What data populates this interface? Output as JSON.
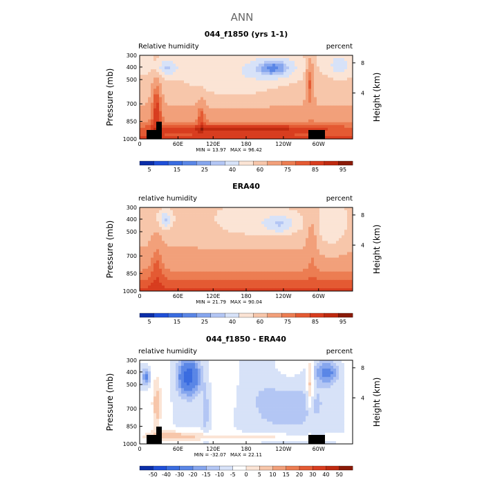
{
  "main_title": "ANN",
  "colors": {
    "rh_palette": [
      "#0b2ea8",
      "#1f4fd8",
      "#3a6ce0",
      "#5a86e6",
      "#86a6ee",
      "#b3c6f4",
      "#d7e2f8",
      "#fbe4d5",
      "#f7c6aa",
      "#f2a07a",
      "#ec7d52",
      "#e45a33",
      "#d83d1f",
      "#bf2a10",
      "#8a1a08"
    ],
    "diff_palette": [
      "#0b2ea8",
      "#1f4fd8",
      "#3a6ce0",
      "#5a86e6",
      "#86a6ee",
      "#b3c6f4",
      "#d7e2f8",
      "#ffffff",
      "#fbe4d5",
      "#f7c6aa",
      "#f2a07a",
      "#ec7d52",
      "#e45a33",
      "#d83d1f",
      "#bf2a10",
      "#8a1a08"
    ],
    "topography": "#000000"
  },
  "chart_data": [
    {
      "type": "heatmap",
      "title": "044_f1850 (yrs 1-1)",
      "left_label": "Relative humidity",
      "right_label": "percent",
      "ylabel": "Pressure (mb)",
      "ylabel_right": "Height (km)",
      "x_ticks": [
        "0",
        "60E",
        "120E",
        "180",
        "120W",
        "60W"
      ],
      "y_ticks": [
        "300",
        "400",
        "500",
        "700",
        "850",
        "1000"
      ],
      "y_right_ticks": [
        "8",
        "4"
      ],
      "min_label": "MIN =   13.97",
      "max_label": "MAX =   96.42",
      "min": 13.97,
      "max": 96.42,
      "colorbar_labels": [
        "5",
        "15",
        "25",
        "40",
        "60",
        "75",
        "85",
        "95"
      ],
      "mode": "model"
    },
    {
      "type": "heatmap",
      "title": "ERA40",
      "left_label": "relative humidity",
      "right_label": "percent",
      "ylabel": "Pressure (mb)",
      "ylabel_right": "Height (km)",
      "x_ticks": [
        "0",
        "60E",
        "120E",
        "180",
        "120W",
        "60W"
      ],
      "y_ticks": [
        "300",
        "400",
        "500",
        "700",
        "850",
        "1000"
      ],
      "y_right_ticks": [
        "8",
        "4"
      ],
      "min_label": "MIN =   21.79",
      "max_label": "MAX =   90.04",
      "min": 21.79,
      "max": 90.04,
      "colorbar_labels": [
        "5",
        "15",
        "25",
        "40",
        "60",
        "75",
        "85",
        "95"
      ],
      "mode": "obs"
    },
    {
      "type": "heatmap",
      "title": "044_f1850 - ERA40",
      "left_label": "relative humidity",
      "right_label": "percent",
      "ylabel": "Pressure (mb)",
      "ylabel_right": "Height (km)",
      "x_ticks": [
        "0",
        "60E",
        "120E",
        "180",
        "120W",
        "60W"
      ],
      "y_ticks": [
        "300",
        "400",
        "500",
        "700",
        "850",
        "1000"
      ],
      "y_right_ticks": [
        "8",
        "4"
      ],
      "min_label": "MIN =  -32.07",
      "max_label": "MAX =   22.11",
      "min": -32.07,
      "max": 22.11,
      "colorbar_labels": [
        "-50",
        "-40",
        "-30",
        "-20",
        "-15",
        "-10",
        "-5",
        "0",
        "5",
        "10",
        "15",
        "20",
        "30",
        "40",
        "50"
      ],
      "mode": "diff"
    }
  ]
}
